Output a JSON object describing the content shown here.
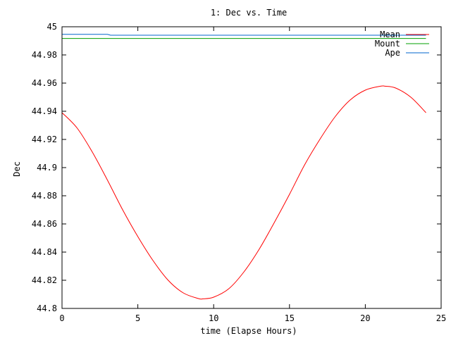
{
  "chart_data": {
    "type": "line",
    "title": "1: Dec vs. Time",
    "xlabel": "time (Elapse Hours)",
    "ylabel": "Dec",
    "xlim": [
      0,
      25
    ],
    "ylim": [
      44.8,
      45
    ],
    "xticks": [
      0,
      5,
      10,
      15,
      20,
      25
    ],
    "xtick_labels": [
      "0",
      "5",
      "10",
      "15",
      "20",
      "25"
    ],
    "yticks": [
      44.8,
      44.82,
      44.84,
      44.86,
      44.88,
      44.9,
      44.92,
      44.94,
      44.96,
      44.98,
      45
    ],
    "ytick_labels": [
      "44.8",
      "44.82",
      "44.84",
      "44.86",
      "44.88",
      "44.9",
      "44.92",
      "44.94",
      "44.96",
      "44.98",
      "45"
    ],
    "grid": false,
    "legend_position": "top-right",
    "series": [
      {
        "name": "Mean",
        "color": "#ff0000",
        "x": [
          0,
          1,
          2,
          3,
          4,
          5,
          6,
          7,
          8,
          9,
          9.3,
          10,
          11,
          12,
          13,
          14,
          15,
          16,
          17,
          18,
          19,
          20,
          21,
          21.3,
          22,
          23,
          24
        ],
        "values": [
          44.939,
          44.928,
          44.911,
          44.891,
          44.87,
          44.851,
          44.834,
          44.82,
          44.811,
          44.807,
          44.8068,
          44.808,
          44.814,
          44.826,
          44.842,
          44.861,
          44.881,
          44.902,
          44.92,
          44.936,
          44.948,
          44.955,
          44.9578,
          44.9578,
          44.9565,
          44.95,
          44.939
        ]
      },
      {
        "name": "Mount",
        "color": "#00a000",
        "x": [
          0,
          24
        ],
        "values": [
          44.9917,
          44.9917
        ]
      },
      {
        "name": "Ape",
        "color": "#0066cc",
        "x": [
          0,
          3,
          3.2,
          24
        ],
        "values": [
          44.9946,
          44.9946,
          44.994,
          44.994
        ]
      }
    ]
  }
}
